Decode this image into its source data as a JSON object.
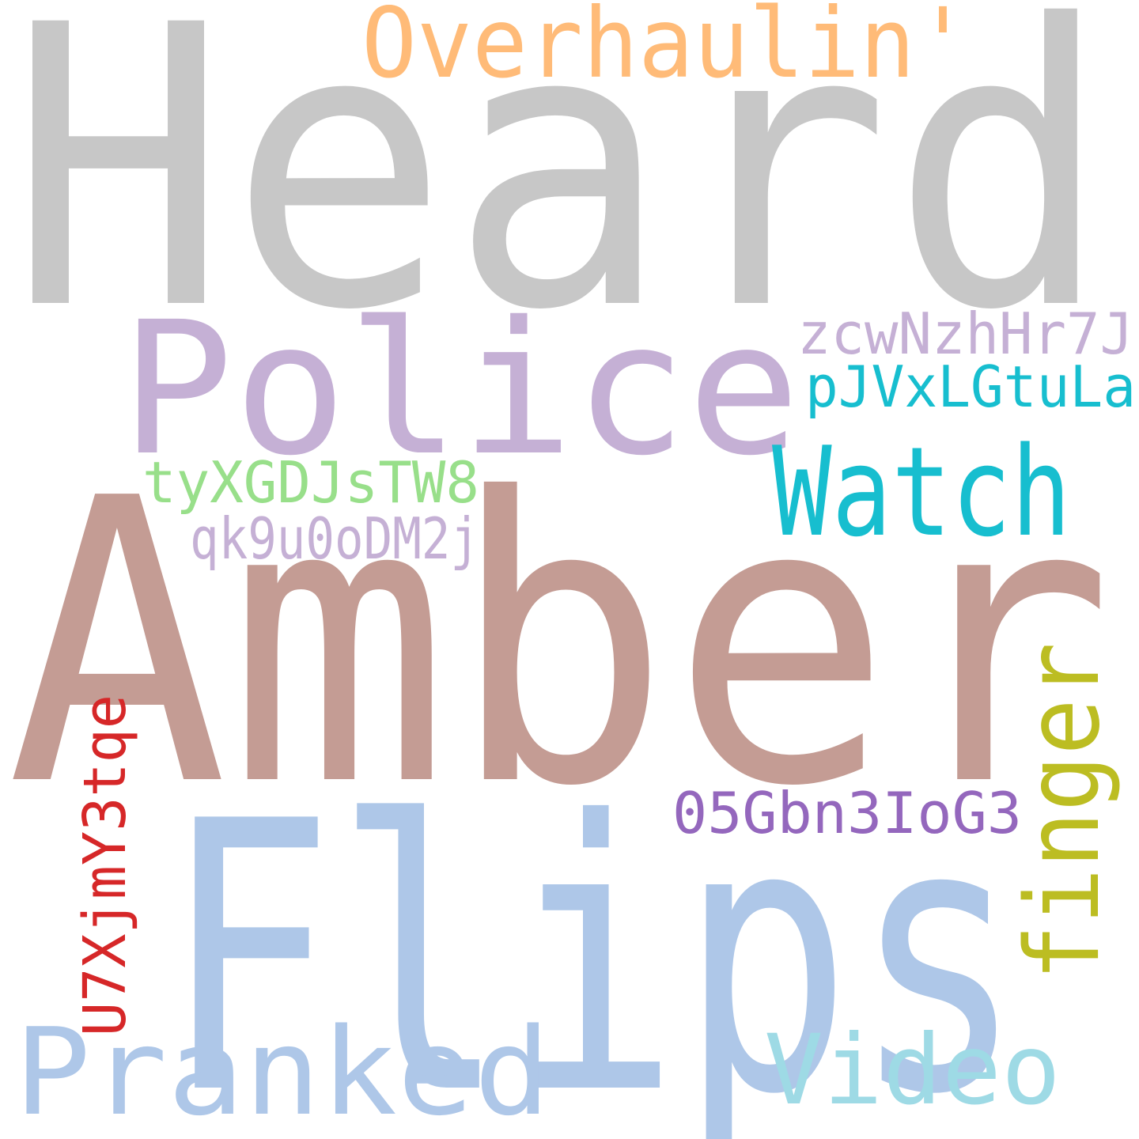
{
  "words": [
    {
      "id": "heard",
      "text": "Heard",
      "color": "#c7c7c7",
      "orientation": "horizontal"
    },
    {
      "id": "amber",
      "text": "Amber",
      "color": "#c49c94",
      "orientation": "horizontal"
    },
    {
      "id": "flips",
      "text": "Flips",
      "color": "#aec7e8",
      "orientation": "horizontal"
    },
    {
      "id": "police",
      "text": "Police",
      "color": "#c5b0d5",
      "orientation": "horizontal"
    },
    {
      "id": "overhaulin",
      "text": "Overhaulin'",
      "color": "#ffbb78",
      "orientation": "horizontal"
    },
    {
      "id": "watch",
      "text": "Watch",
      "color": "#17becf",
      "orientation": "horizontal"
    },
    {
      "id": "pranked",
      "text": "Pranked",
      "color": "#aec7e8",
      "orientation": "horizontal"
    },
    {
      "id": "video",
      "text": "Video",
      "color": "#9edae5",
      "orientation": "horizontal"
    },
    {
      "id": "finger",
      "text": "finger",
      "color": "#bcbd22",
      "orientation": "vertical"
    },
    {
      "id": "zcwnzhhr7j",
      "text": "zcwNzhHr7J",
      "color": "#c5b0d5",
      "orientation": "horizontal"
    },
    {
      "id": "pjvxlgtula",
      "text": "pJVxLGtuLa",
      "color": "#17becf",
      "orientation": "horizontal"
    },
    {
      "id": "tyxgdjstw8",
      "text": "tyXGDJsTW8",
      "color": "#98df8a",
      "orientation": "horizontal"
    },
    {
      "id": "qk9u0odm2j",
      "text": "qk9u0oDM2j",
      "color": "#c5b0d5",
      "orientation": "horizontal"
    },
    {
      "id": "05gbn3iog3",
      "text": "05Gbn3IoG3",
      "color": "#9467bd",
      "orientation": "horizontal"
    },
    {
      "id": "u7xjmy3tqe",
      "text": "U7XjmY3tqe",
      "color": "#d62728",
      "orientation": "vertical"
    }
  ]
}
